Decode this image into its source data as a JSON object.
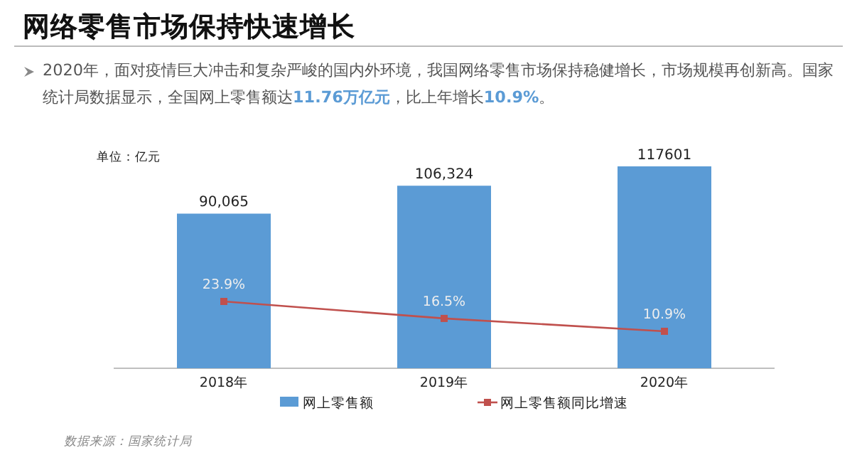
{
  "chart_data": {
    "type": "bar",
    "title": "网络零售市场保持快速增长",
    "subtitle": "2020年，面对疫情巨大冲击和复杂严峻的国内外环境，我国网络零售市场保持稳健增长，市场规模再创新高。国家统计局数据显示，全国网上零售额达**11.76万亿元**，比上年增长**10.9%**。",
    "categories": [
      "2018年",
      "2019年",
      "2020年"
    ],
    "series": [
      {
        "name": "网上零售额",
        "color": "#5b9bd5",
        "values": [
          90065,
          106324,
          117601
        ],
        "value_labels": [
          "90,065",
          "106,324",
          "117601"
        ]
      },
      {
        "name": "网上零售额同比增速",
        "type": "line",
        "axis": "y2",
        "color": "#c0504d",
        "values": [
          23.9,
          16.5,
          10.9
        ],
        "value_labels": [
          "23.9%",
          "16.5%",
          "10.9%"
        ]
      }
    ],
    "marker": "square",
    "legend": "bottom",
    "annotations": [
      "单位：亿元",
      "数据来源：国家统计局"
    ]
  }
}
